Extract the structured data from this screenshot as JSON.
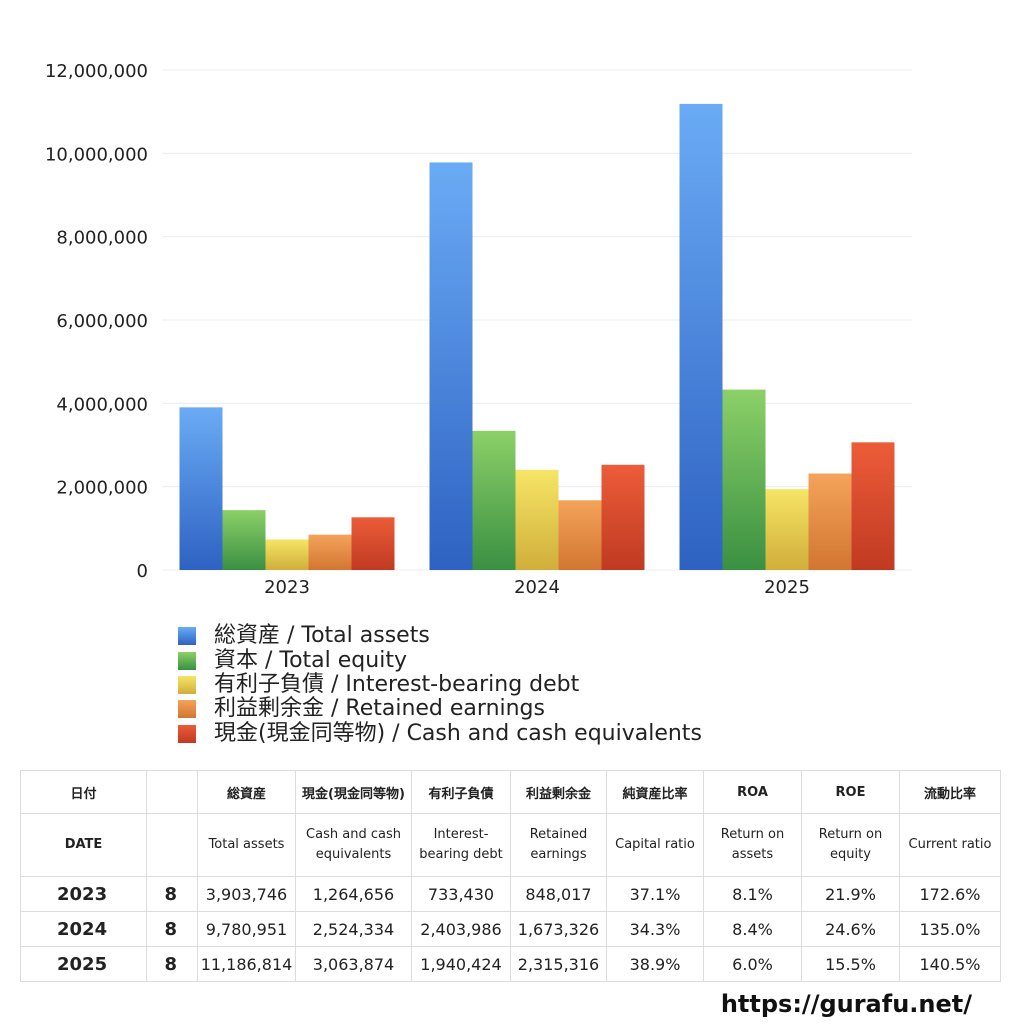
{
  "chart_data": {
    "type": "bar",
    "categories": [
      "2023",
      "2024",
      "2025"
    ],
    "ylim": [
      0,
      12000000
    ],
    "yticks": [
      "0",
      "2,000,000",
      "4,000,000",
      "6,000,000",
      "8,000,000",
      "10,000,000",
      "12,000,000"
    ],
    "ytick_values": [
      0,
      2000000,
      4000000,
      6000000,
      8000000,
      10000000,
      12000000
    ],
    "grid": true,
    "legend_position": "bottom-left",
    "series": [
      {
        "name": "総資産 / Total assets",
        "values": [
          3903746,
          9780951,
          11186814
        ],
        "color_top": "#6aabf5",
        "color_bottom": "#2e62c2"
      },
      {
        "name": "資本 / Total equity",
        "values": [
          1437000,
          3340000,
          4330000
        ],
        "color_top": "#8cd068",
        "color_bottom": "#3a9042"
      },
      {
        "name": "有利子負債 / Interest-bearing debt",
        "values": [
          733430,
          2403986,
          1940424
        ],
        "color_top": "#f6e566",
        "color_bottom": "#d0ae3a"
      },
      {
        "name": "利益剰余金 / Retained earnings",
        "values": [
          848017,
          1673326,
          2315316
        ],
        "color_top": "#f4a35a",
        "color_bottom": "#d27632"
      },
      {
        "name": "現金(現金同等物)  /  Cash and cash equivalents",
        "values": [
          1264656,
          2524334,
          3063874
        ],
        "color_top": "#ec5c38",
        "color_bottom": "#c03a22"
      }
    ]
  },
  "table": {
    "headers_jp": [
      "日付",
      "",
      "総資産",
      "現金(現金同等物)",
      "有利子負債",
      "利益剰余金",
      "純資産比率",
      "ROA",
      "ROE",
      "流動比率"
    ],
    "headers_en": [
      "DATE",
      "",
      "Total assets",
      "Cash and cash equivalents",
      "Interest-bearing debt",
      "Retained earnings",
      "Capital ratio",
      "Return on assets",
      "Return on equity",
      "Current ratio"
    ],
    "rows": [
      [
        "2023",
        "8",
        "3,903,746",
        "1,264,656",
        "733,430",
        "848,017",
        "37.1%",
        "8.1%",
        "21.9%",
        "172.6%"
      ],
      [
        "2024",
        "8",
        "9,780,951",
        "2,524,334",
        "2,403,986",
        "1,673,326",
        "34.3%",
        "8.4%",
        "24.6%",
        "135.0%"
      ],
      [
        "2025",
        "8",
        "11,186,814",
        "3,063,874",
        "1,940,424",
        "2,315,316",
        "38.9%",
        "6.0%",
        "15.5%",
        "140.5%"
      ]
    ]
  },
  "footer": {
    "site": "https://gurafu.net/"
  }
}
